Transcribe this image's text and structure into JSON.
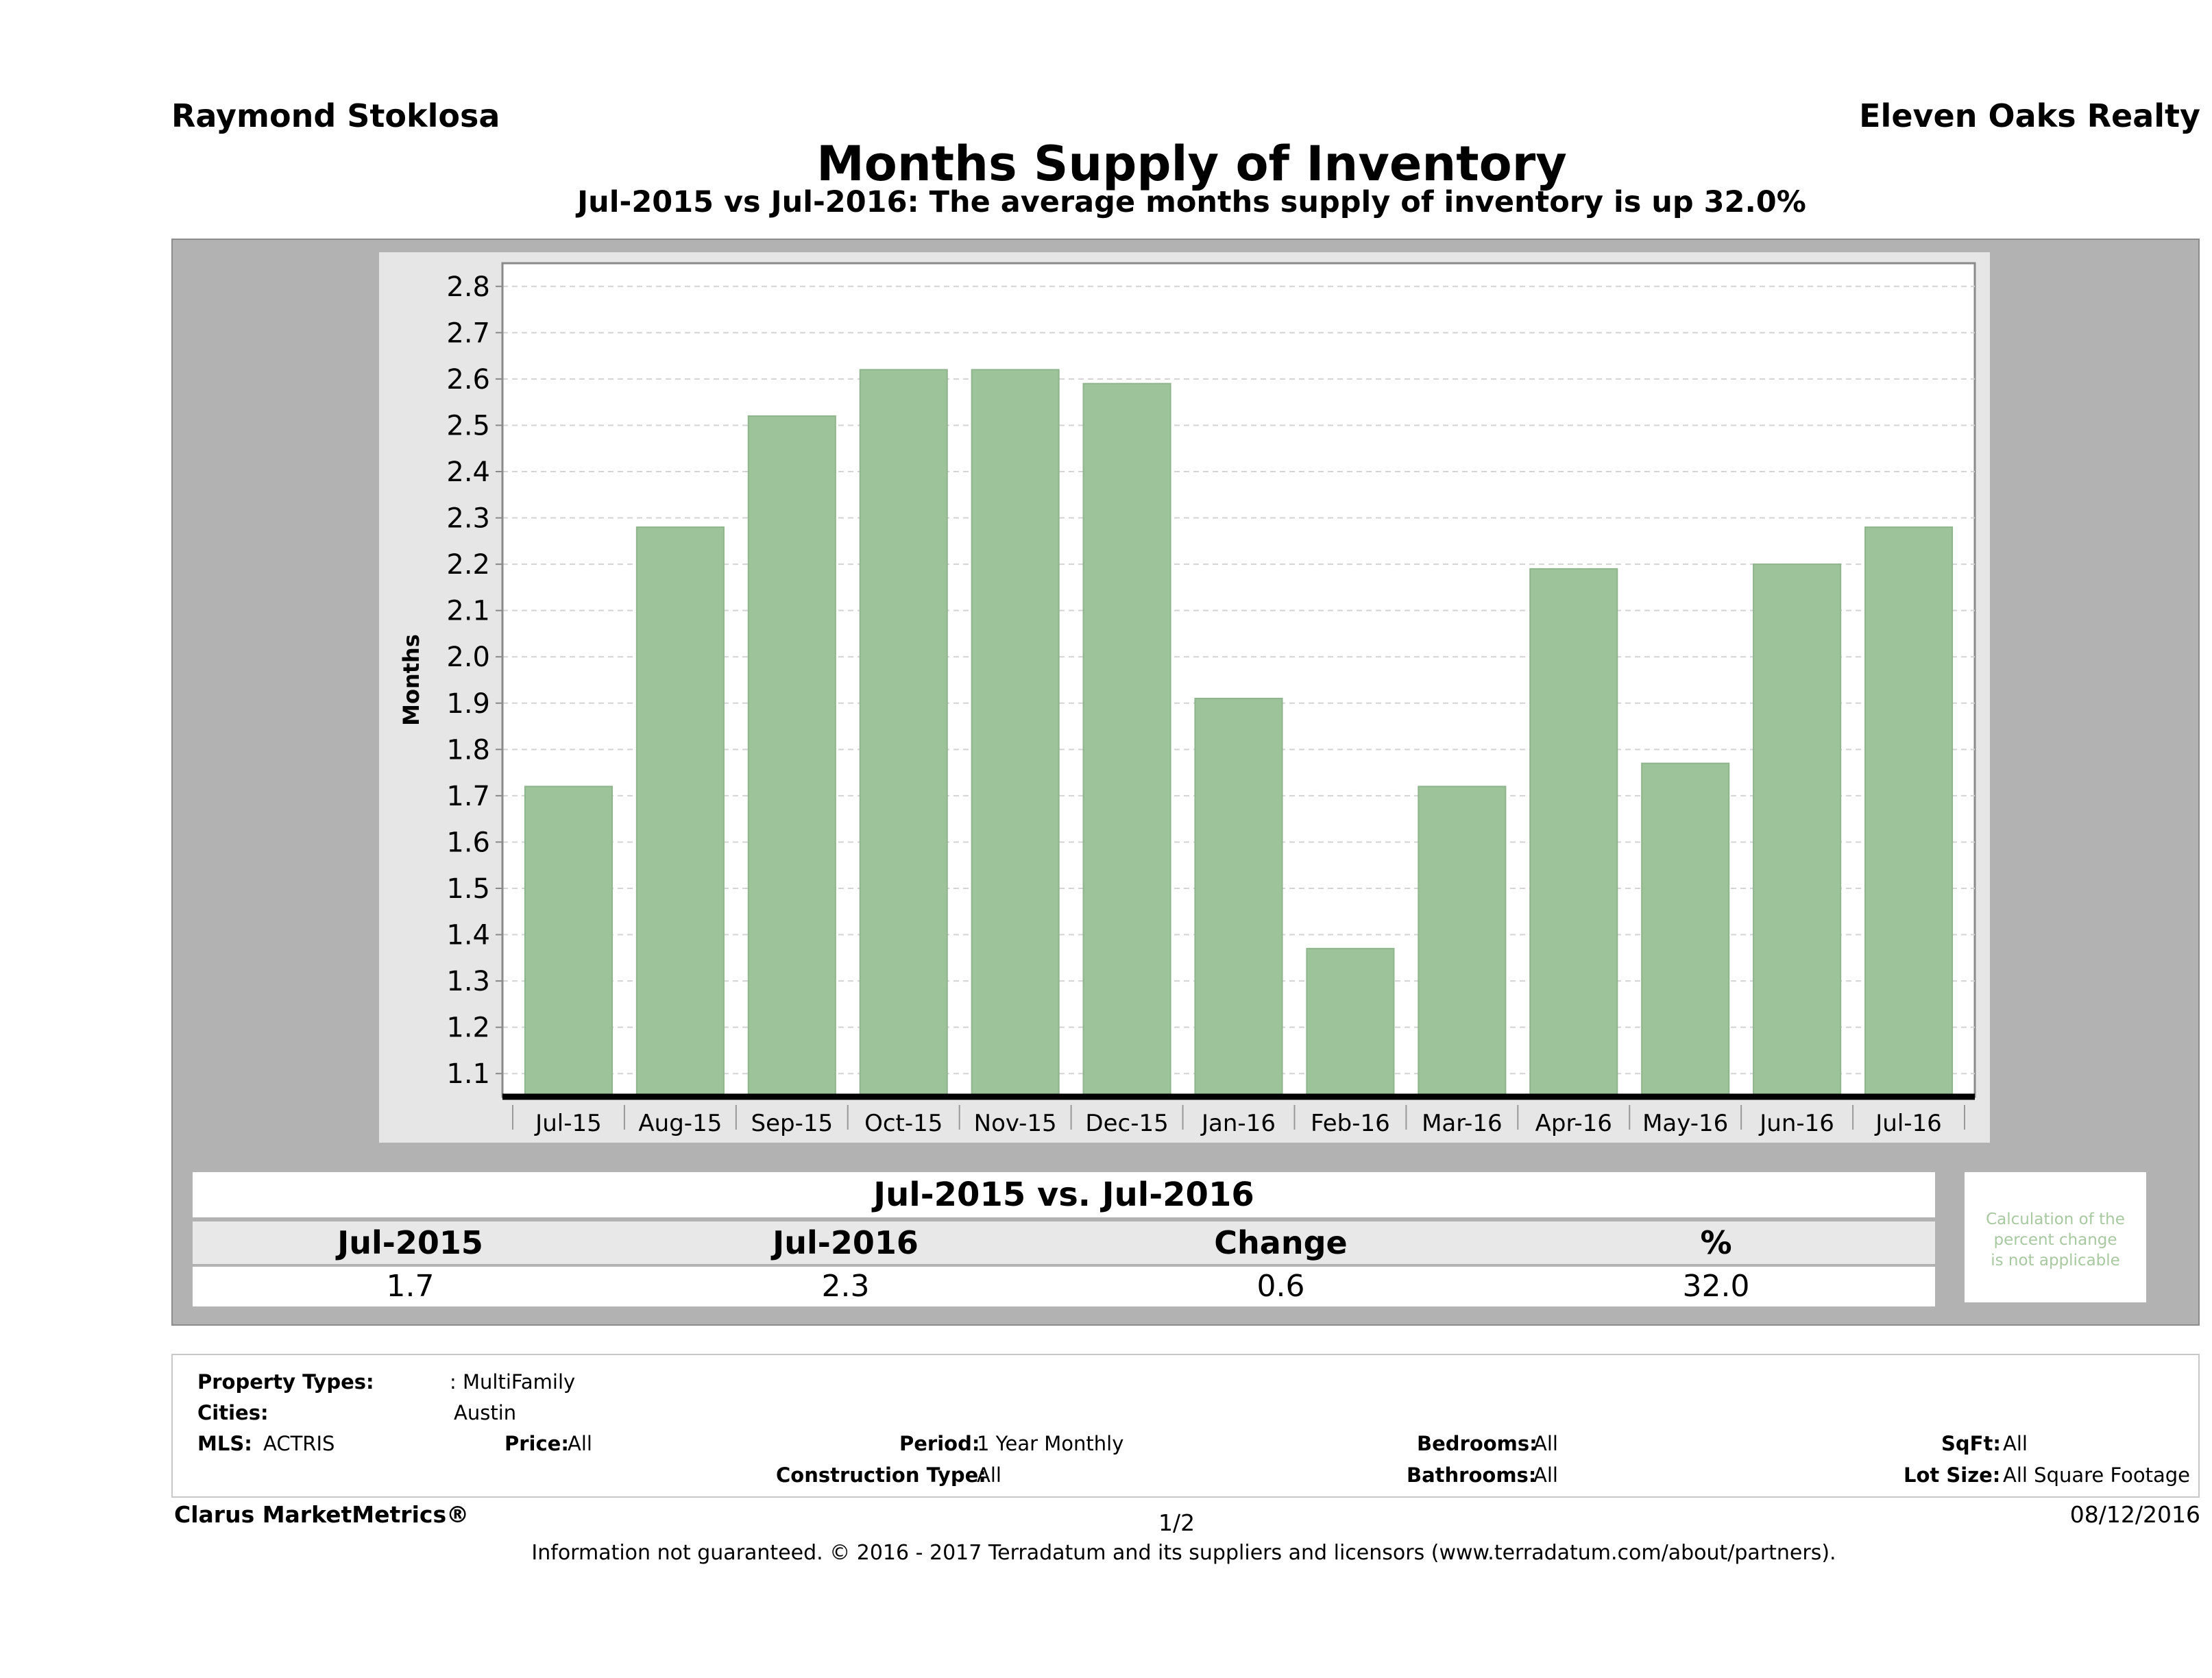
{
  "header": {
    "agent": "Raymond Stoklosa",
    "brokerage": "Eleven Oaks Realty",
    "title": "Months Supply of Inventory",
    "subtitle": "Jul-2015 vs Jul-2016: The average months supply of inventory is up 32.0%"
  },
  "chart_data": {
    "type": "bar",
    "title": "Months Supply of Inventory",
    "ylabel": "Months",
    "xlabel": "",
    "categories": [
      "Jul-15",
      "Aug-15",
      "Sep-15",
      "Oct-15",
      "Nov-15",
      "Dec-15",
      "Jan-16",
      "Feb-16",
      "Mar-16",
      "Apr-16",
      "May-16",
      "Jun-16",
      "Jul-16"
    ],
    "values": [
      1.72,
      2.28,
      2.52,
      2.62,
      2.62,
      2.59,
      1.91,
      1.37,
      1.72,
      2.19,
      1.77,
      2.2,
      2.28
    ],
    "ylim": [
      1.05,
      2.85
    ],
    "yticks": [
      "1.1",
      "1.2",
      "1.3",
      "1.4",
      "1.5",
      "1.6",
      "1.7",
      "1.8",
      "1.9",
      "2.0",
      "2.1",
      "2.2",
      "2.3",
      "2.4",
      "2.5",
      "2.6",
      "2.7",
      "2.8"
    ],
    "grid": true,
    "bar_color": "#9dc39a"
  },
  "comparison": {
    "title": "Jul-2015 vs. Jul-2016",
    "headers": [
      "Jul-2015",
      "Jul-2016",
      "Change",
      "%"
    ],
    "values": [
      "1.7",
      "2.3",
      "0.6",
      "32.0"
    ],
    "note_line1": "Calculation of the",
    "note_line2": "percent change",
    "note_line3": "is not applicable"
  },
  "filters": {
    "property_types_label": "Property Types:",
    "property_types_value": ": MultiFamily",
    "cities_label": "Cities:",
    "cities_value": "Austin",
    "mls_label": "MLS:",
    "mls_value": "ACTRIS",
    "price_label": "Price:",
    "price_value": "All",
    "period_label": "Period:",
    "period_value": "1 Year Monthly",
    "construction_label": "Construction Type:",
    "construction_value": "All",
    "bedrooms_label": "Bedrooms:",
    "bedrooms_value": "All",
    "bathrooms_label": "Bathrooms:",
    "bathrooms_value": "All",
    "sqft_label": "SqFt:",
    "sqft_value": "All",
    "lotsize_label": "Lot Size:",
    "lotsize_value": "All Square Footage"
  },
  "footer": {
    "product": "Clarus MarketMetrics®",
    "page": "1/2",
    "date": "08/12/2016",
    "disclaimer": "Information not guaranteed. © 2016 - 2017 Terradatum and its suppliers and licensors (www.terradatum.com/about/partners)."
  }
}
